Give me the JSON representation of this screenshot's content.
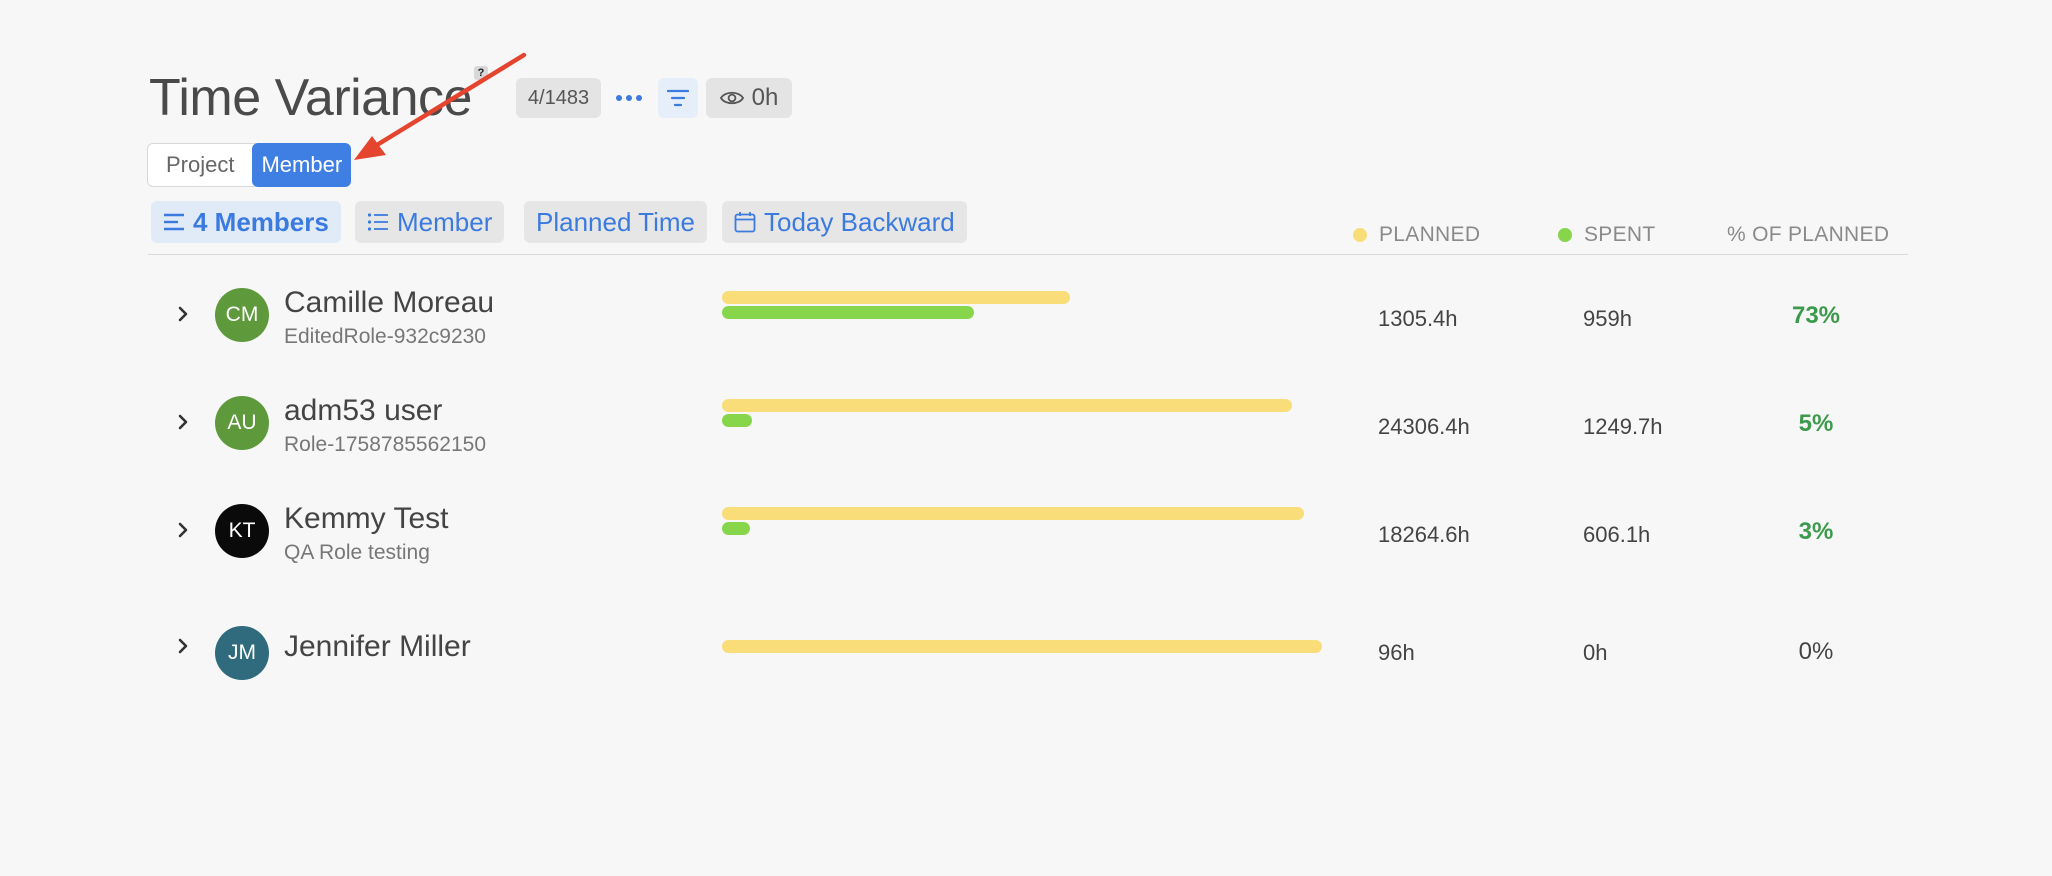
{
  "page": {
    "title": "Time Variance",
    "help_mark": "?"
  },
  "header": {
    "count": "4/1483",
    "eye_value": "0h",
    "icons": {
      "more": "more-horizontal-icon",
      "filter": "filter-icon",
      "eye": "eye-icon"
    }
  },
  "view_toggle": {
    "options": [
      "Project",
      "Member"
    ],
    "selected": "Member"
  },
  "toolbar": {
    "members_chip": "4 Members",
    "group_chip": "Member",
    "metric_chip": "Planned Time",
    "range_chip": "Today Backward"
  },
  "columns": {
    "planned": "PLANNED",
    "spent": "SPENT",
    "percent": "% OF PLANNED"
  },
  "colors": {
    "planned": "#f9dd78",
    "spent": "#86d54a",
    "accent": "#3f7fe3",
    "positive": "#3c9a4c"
  },
  "members": [
    {
      "initials": "CM",
      "name": "Camille Moreau",
      "role": "EditedRole-932c9230",
      "planned": "1305.4h",
      "spent": "959h",
      "percent": "73%",
      "avatar_color": "#5e9a3c",
      "planned_fraction": 0.58,
      "spent_fraction": 0.42
    },
    {
      "initials": "AU",
      "name": "adm53 user",
      "role": "Role-1758785562150",
      "planned": "24306.4h",
      "spent": "1249.7h",
      "percent": "5%",
      "avatar_color": "#5e9a3c",
      "planned_fraction": 0.95,
      "spent_fraction": 0.05
    },
    {
      "initials": "KT",
      "name": "Kemmy Test",
      "role": "QA Role testing",
      "planned": "18264.6h",
      "spent": "606.1h",
      "percent": "3%",
      "avatar_color": "#0a0a0a",
      "planned_fraction": 0.97,
      "spent_fraction": 0.03
    },
    {
      "initials": "JM",
      "name": "Jennifer Miller",
      "role": "",
      "planned": "96h",
      "spent": "0h",
      "percent": "0%",
      "avatar_color": "#2f6b7c",
      "planned_fraction": 1.0,
      "spent_fraction": 0
    }
  ]
}
